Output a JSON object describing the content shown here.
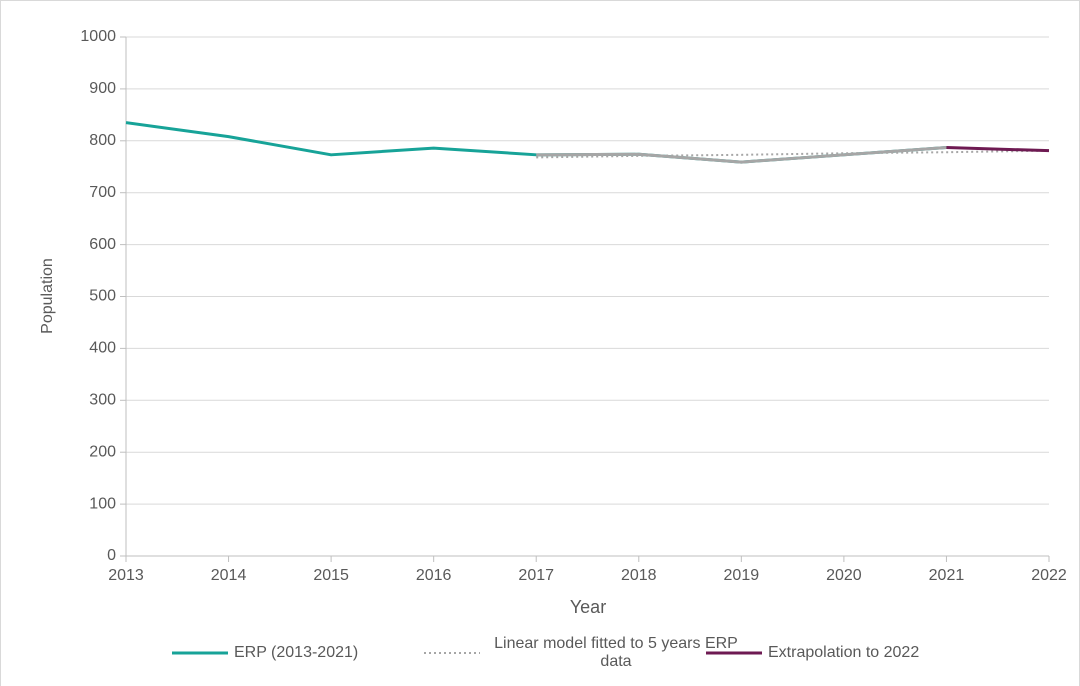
{
  "chart_data": {
    "type": "line",
    "x_label": "Year",
    "y_label": "Population",
    "x": [
      2013,
      2014,
      2015,
      2016,
      2017,
      2018,
      2019,
      2020,
      2021,
      2022
    ],
    "xlim": [
      2013,
      2022
    ],
    "xticks": [
      2013,
      2014,
      2015,
      2016,
      2017,
      2018,
      2019,
      2020,
      2021,
      2022
    ],
    "ylim": [
      0,
      1000
    ],
    "yticks": [
      0,
      100,
      200,
      300,
      400,
      500,
      600,
      700,
      800,
      900,
      1000
    ],
    "grid": true,
    "legend": "bottom",
    "series": [
      {
        "name": "ERP (2013-2021)",
        "color": "#17a398",
        "dash": "solid",
        "values": [
          835,
          808,
          773,
          786,
          773,
          774,
          759,
          773,
          787,
          null
        ]
      },
      {
        "color": "#a6a6a6",
        "dash": "solid",
        "values": [
          null,
          null,
          null,
          null,
          773,
          774,
          759,
          773,
          787,
          null
        ]
      },
      {
        "name": "Linear model fitted to 5 years ERP data",
        "color": "#a6a6a6",
        "dash": "dotted",
        "values": [
          null,
          null,
          null,
          null,
          768,
          771,
          773,
          776,
          778,
          781
        ]
      },
      {
        "name": "Extrapolation to 2022",
        "color": "#6e1a52",
        "dash": "solid",
        "values": [
          null,
          null,
          null,
          null,
          null,
          null,
          null,
          null,
          787,
          781
        ]
      }
    ]
  }
}
